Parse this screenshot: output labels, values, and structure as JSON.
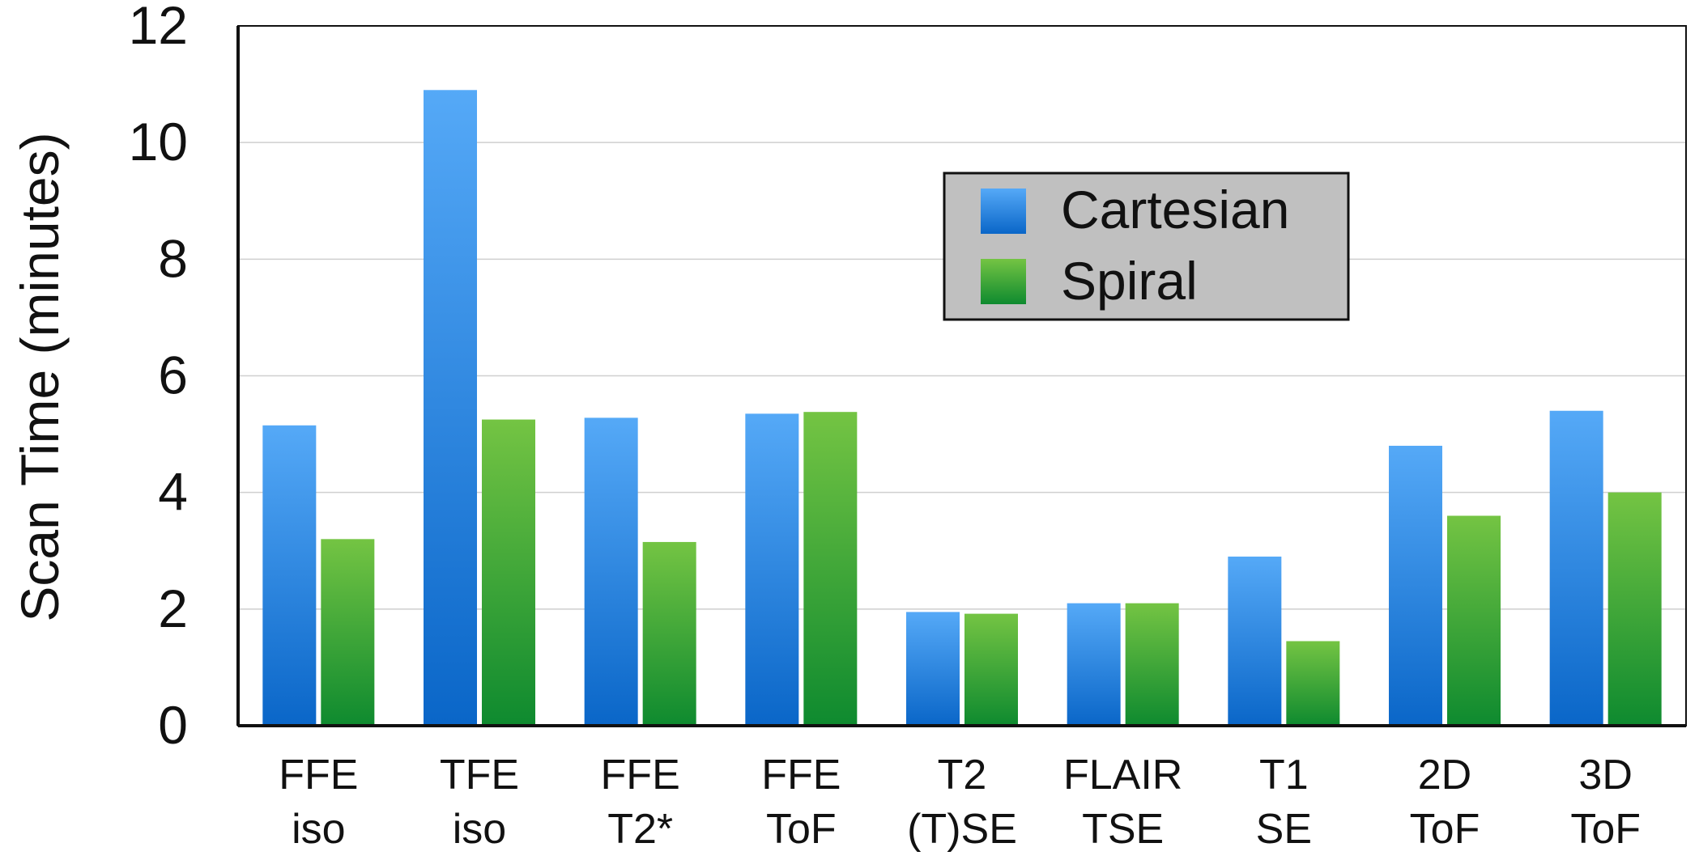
{
  "chart_data": {
    "type": "bar",
    "title": "",
    "xlabel": "",
    "ylabel": "Scan Time (minutes)",
    "ylim": [
      0,
      12
    ],
    "yticks": [
      "0",
      "2",
      "4",
      "6",
      "8",
      "10",
      "12"
    ],
    "grid": true,
    "legend_position": "top-right",
    "categories": [
      [
        "FFE",
        "iso"
      ],
      [
        "TFE",
        "iso"
      ],
      [
        "FFE",
        "T2*"
      ],
      [
        "FFE",
        "ToF"
      ],
      [
        "T2",
        "(T)SE"
      ],
      [
        "FLAIR",
        "TSE"
      ],
      [
        "T1",
        "SE"
      ],
      [
        "2D",
        "ToF"
      ],
      [
        "3D",
        "ToF"
      ]
    ],
    "series": [
      {
        "name": "Cartesian",
        "color_top": "#55a9f7",
        "color_bottom": "#0a66c8",
        "values": [
          5.15,
          10.9,
          5.28,
          5.35,
          1.95,
          2.1,
          2.9,
          4.8,
          5.4
        ]
      },
      {
        "name": "Spiral",
        "color_top": "#74c443",
        "color_bottom": "#0e8a2f",
        "values": [
          3.2,
          5.25,
          3.15,
          5.38,
          1.92,
          2.1,
          1.45,
          3.6,
          4.0
        ]
      }
    ],
    "colors": {
      "axis": "#111111",
      "grid": "#cfcfcf",
      "legend_background": "#c0c0c0"
    }
  }
}
